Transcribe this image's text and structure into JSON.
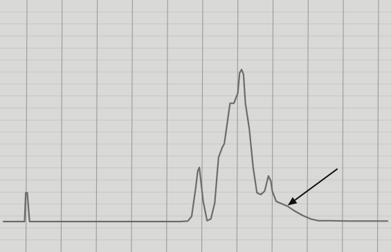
{
  "chart_data": {
    "type": "line",
    "title": "",
    "xlabel": "",
    "ylabel": "",
    "grid": true,
    "grid_count": {
      "vertical": 11,
      "horizontal": 21
    },
    "xlim": [
      0,
      100
    ],
    "ylim": [
      0,
      100
    ],
    "series": [
      {
        "x": [
          0,
          5.5,
          5.8,
          6.2,
          6.8,
          10,
          20,
          30,
          40,
          46,
          48,
          49,
          50,
          50.6,
          51,
          52,
          53,
          54,
          55,
          56,
          57,
          57.5,
          58,
          59,
          60,
          61,
          61.5,
          62,
          62.5,
          63,
          64,
          65,
          66,
          67,
          68,
          69,
          69.6,
          70,
          71,
          72,
          74,
          76,
          78,
          80,
          82,
          85,
          90,
          95,
          100
        ],
        "y": [
          0,
          0,
          17,
          17,
          0,
          0,
          0,
          0,
          0,
          0,
          0.3,
          3,
          19,
          30,
          32,
          12,
          0.5,
          1.5,
          11,
          38,
          44,
          46,
          54,
          70,
          70,
          76,
          88,
          90,
          87,
          70,
          55,
          32,
          17,
          16,
          18,
          27,
          24,
          18,
          12,
          11,
          9,
          6,
          3.5,
          1.5,
          0.5,
          0.5,
          0.3,
          0.3,
          0.3
        ]
      }
    ],
    "annotations": [
      {
        "type": "arrow",
        "points_to": {
          "x": 74,
          "y": 9.5
        }
      }
    ],
    "colors": {
      "paper": "#d9d9d7",
      "grid": "#8a8a8a",
      "trace": "#6b6b6b",
      "arrow": "#111111"
    }
  }
}
